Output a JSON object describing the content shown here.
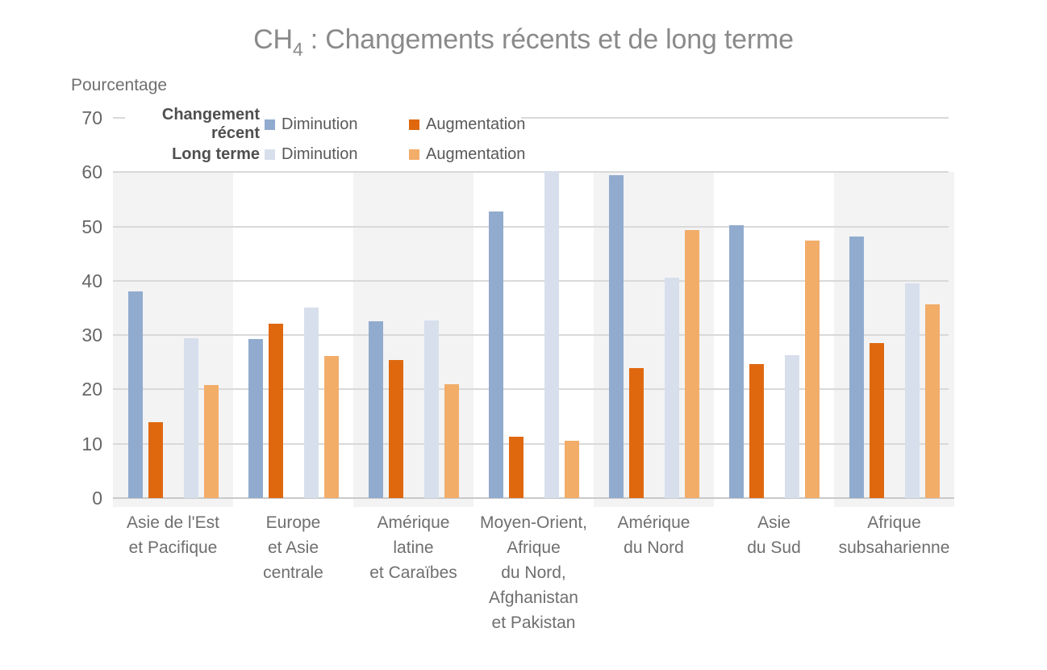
{
  "title": {
    "prefix": "CH",
    "subscript": "4",
    "rest": " : Changements récents et de long terme",
    "color": "#8a8a8a"
  },
  "axis": {
    "y_label": "Pourcentage"
  },
  "legend": {
    "rows": [
      {
        "group": "Changement récent",
        "items": [
          {
            "label": "Diminution",
            "color": "#91ABCE"
          },
          {
            "label": "Augmentation",
            "color": "#DF680F"
          }
        ]
      },
      {
        "group": "Long terme",
        "items": [
          {
            "label": "Diminution",
            "color": "#D7DFEC"
          },
          {
            "label": "Augmentation",
            "color": "#F2AD69"
          }
        ]
      }
    ]
  },
  "chart_data": {
    "type": "bar",
    "title": "CH4 : Changements récents et de long terme",
    "xlabel": "",
    "ylabel": "Pourcentage",
    "ylim": [
      0,
      70
    ],
    "yticks": [
      0,
      10,
      20,
      30,
      40,
      50,
      60,
      70
    ],
    "grid": true,
    "legend_position": "top-left-inside",
    "categories": [
      "Asie de l'Est et Pacifique",
      "Europe et Asie centrale",
      "Amérique latine et Caraïbes",
      "Moyen-Orient, Afrique du Nord, Afghanistan et Pakistan",
      "Amérique du Nord",
      "Asie du Sud",
      "Afrique subsaharienne"
    ],
    "category_label_lines": [
      [
        "Asie de l'Est",
        "et Pacifique"
      ],
      [
        "Europe",
        "et Asie",
        "centrale"
      ],
      [
        "Amérique",
        "latine",
        "et Caraïbes"
      ],
      [
        "Moyen-Orient,",
        "Afrique",
        "du Nord,",
        "Afghanistan",
        "et Pakistan"
      ],
      [
        "Amérique",
        "du Nord"
      ],
      [
        "Asie",
        "du Sud"
      ],
      [
        "Afrique",
        "subsaharienne"
      ]
    ],
    "series": [
      {
        "name": "Changement récent — Diminution",
        "color": "#91ABCE",
        "values": [
          38.0,
          29.3,
          32.6,
          52.8,
          59.5,
          50.2,
          48.2
        ]
      },
      {
        "name": "Changement récent — Augmentation",
        "color": "#DF680F",
        "values": [
          14.0,
          32.1,
          25.4,
          11.3,
          23.9,
          24.6,
          28.6
        ]
      },
      {
        "name": "Long terme — Diminution",
        "color": "#D7DFEC",
        "values": [
          29.4,
          35.1,
          32.7,
          60.2,
          40.5,
          26.3,
          39.6
        ]
      },
      {
        "name": "Long terme — Augmentation",
        "color": "#F2AD69",
        "values": [
          20.8,
          26.1,
          21.0,
          10.6,
          49.4,
          47.4,
          35.6
        ]
      }
    ],
    "band_colors": {
      "odd_groups": "#F3F3F4",
      "even_groups": "#FFFFFF"
    },
    "gridline_color": "#D9D9D9",
    "axis_line_color": "#C9C9C9"
  }
}
